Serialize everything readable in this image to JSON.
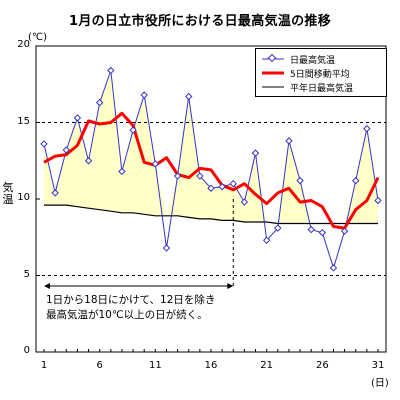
{
  "title": "1月の日立市役所における日最高気温の推移",
  "unit_label": "(℃)",
  "ylabel": "気温",
  "xunit": "(日)",
  "annotation": {
    "line1": "1日から18日にかけて、12日を除き",
    "line2": "最高気温が10℃以上の日が続く。"
  },
  "legend": [
    {
      "label": "日最高気温"
    },
    {
      "label": "5日間移動平均"
    },
    {
      "label": "平年日最高気温"
    }
  ],
  "colors": {
    "daily": "#3333cc",
    "moving_avg": "#ff0000",
    "normal": "#000000",
    "fill": "#ffffc8",
    "grid": "#000000"
  },
  "chart_data": {
    "type": "line",
    "x": [
      1,
      2,
      3,
      4,
      5,
      6,
      7,
      8,
      9,
      10,
      11,
      12,
      13,
      14,
      15,
      16,
      17,
      18,
      19,
      20,
      21,
      22,
      23,
      24,
      25,
      26,
      27,
      28,
      29,
      30,
      31
    ],
    "xticks": [
      "1",
      "6",
      "11",
      "16",
      "21",
      "26",
      "31"
    ],
    "yticks": [
      "0",
      "5",
      "10",
      "15",
      "20"
    ],
    "ylim": [
      0,
      20
    ],
    "xlim": [
      1,
      31
    ],
    "grid": "dashed horizontal at 5 and 15",
    "legend_position": "top-right",
    "series": [
      {
        "name": "日最高気温",
        "values": [
          13.6,
          10.4,
          13.2,
          15.3,
          12.5,
          16.3,
          18.4,
          11.8,
          14.5,
          16.8,
          12.3,
          6.8,
          11.5,
          16.7,
          11.5,
          10.7,
          10.8,
          11.0,
          9.8,
          13.0,
          7.3,
          8.1,
          13.8,
          11.2,
          8.0,
          7.8,
          5.5,
          7.9,
          11.2,
          14.6,
          9.9
        ]
      },
      {
        "name": "5日間移動平均",
        "values": [
          12.4,
          12.8,
          12.9,
          13.5,
          15.1,
          14.9,
          15.0,
          15.6,
          14.8,
          12.4,
          12.2,
          12.7,
          11.6,
          11.4,
          12.0,
          11.9,
          10.9,
          10.6,
          11.0,
          10.3,
          9.7,
          10.4,
          10.7,
          9.8,
          9.9,
          9.5,
          8.2,
          8.1,
          9.3,
          9.9,
          11.4
        ]
      },
      {
        "name": "平年日最高気温",
        "values": [
          9.6,
          9.6,
          9.6,
          9.5,
          9.4,
          9.3,
          9.2,
          9.1,
          9.1,
          9.0,
          8.9,
          8.9,
          8.9,
          8.8,
          8.7,
          8.7,
          8.6,
          8.6,
          8.5,
          8.5,
          8.5,
          8.4,
          8.4,
          8.4,
          8.4,
          8.4,
          8.4,
          8.4,
          8.4,
          8.4,
          8.4
        ]
      }
    ],
    "annotation_marker": {
      "x": 18,
      "y": 10
    }
  }
}
